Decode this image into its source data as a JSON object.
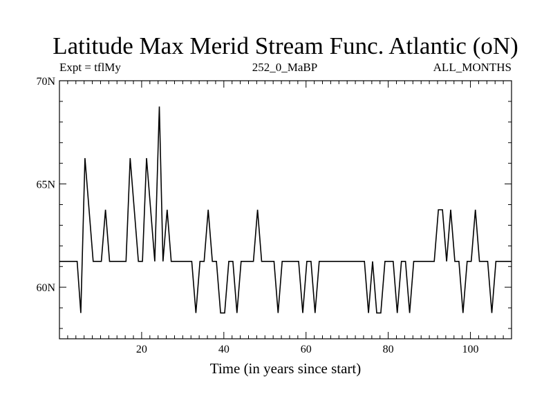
{
  "chart_data": {
    "type": "line",
    "title": "Latitude Max Merid Stream Func. Atlantic (oN)",
    "subtitle_left": "Expt = tflMy",
    "subtitle_center": "252_0_MaBP",
    "subtitle_right": "ALL_MONTHS",
    "xlabel": "Time (in years since start)",
    "ylabel": "",
    "xlim": [
      0,
      110
    ],
    "ylim": [
      57.5,
      70
    ],
    "x_ticks": [
      {
        "value": 20,
        "label": "20"
      },
      {
        "value": 40,
        "label": "40"
      },
      {
        "value": 60,
        "label": "60"
      },
      {
        "value": 80,
        "label": "80"
      },
      {
        "value": 100,
        "label": "100"
      }
    ],
    "y_ticks": [
      {
        "value": 60,
        "label": "60N"
      },
      {
        "value": 65,
        "label": "65N"
      },
      {
        "value": 70,
        "label": "70N"
      }
    ],
    "series": [
      {
        "name": "Latitude Max Merid Stream Func.",
        "color": "#000000",
        "points": [
          [
            0,
            61.25
          ],
          [
            4.3,
            61.25
          ],
          [
            5.2,
            58.75
          ],
          [
            6.2,
            66.25
          ],
          [
            8.2,
            61.25
          ],
          [
            10.2,
            61.25
          ],
          [
            11.2,
            63.75
          ],
          [
            12.2,
            61.25
          ],
          [
            16.2,
            61.25
          ],
          [
            17.2,
            66.25
          ],
          [
            19.2,
            61.25
          ],
          [
            20.2,
            61.25
          ],
          [
            21.2,
            66.25
          ],
          [
            23.2,
            61.25
          ],
          [
            24.3,
            68.75
          ],
          [
            25.2,
            61.25
          ],
          [
            26.2,
            63.75
          ],
          [
            27.2,
            61.25
          ],
          [
            32.2,
            61.25
          ],
          [
            33.2,
            58.75
          ],
          [
            34.2,
            61.25
          ],
          [
            35.2,
            61.25
          ],
          [
            36.2,
            63.75
          ],
          [
            37.2,
            61.25
          ],
          [
            38.2,
            61.25
          ],
          [
            39.2,
            58.75
          ],
          [
            40.2,
            58.75
          ],
          [
            41.2,
            61.25
          ],
          [
            42.2,
            61.25
          ],
          [
            43.2,
            58.75
          ],
          [
            44.2,
            61.25
          ],
          [
            47.2,
            61.25
          ],
          [
            48.2,
            63.75
          ],
          [
            49.2,
            61.25
          ],
          [
            52.2,
            61.25
          ],
          [
            53.2,
            58.75
          ],
          [
            54.2,
            61.25
          ],
          [
            58.2,
            61.25
          ],
          [
            59.2,
            58.75
          ],
          [
            60.2,
            61.25
          ],
          [
            61.2,
            61.25
          ],
          [
            62.2,
            58.75
          ],
          [
            63.2,
            61.25
          ],
          [
            74.2,
            61.25
          ],
          [
            75.2,
            58.75
          ],
          [
            76.2,
            61.25
          ],
          [
            77.2,
            58.75
          ],
          [
            78.2,
            58.75
          ],
          [
            79.2,
            61.25
          ],
          [
            81.2,
            61.25
          ],
          [
            82.2,
            58.75
          ],
          [
            83.2,
            61.25
          ],
          [
            84.2,
            61.25
          ],
          [
            85.2,
            58.75
          ],
          [
            86.2,
            61.25
          ],
          [
            91.2,
            61.25
          ],
          [
            92.2,
            63.75
          ],
          [
            93.2,
            63.75
          ],
          [
            94.2,
            61.25
          ],
          [
            95.2,
            63.75
          ],
          [
            96.2,
            61.25
          ],
          [
            97.2,
            61.25
          ],
          [
            98.2,
            58.75
          ],
          [
            99.2,
            61.25
          ],
          [
            100.2,
            61.25
          ],
          [
            101.2,
            63.75
          ],
          [
            102.2,
            61.25
          ],
          [
            104.2,
            61.25
          ],
          [
            105.2,
            58.75
          ],
          [
            106.2,
            61.25
          ],
          [
            110,
            61.25
          ]
        ]
      }
    ]
  }
}
